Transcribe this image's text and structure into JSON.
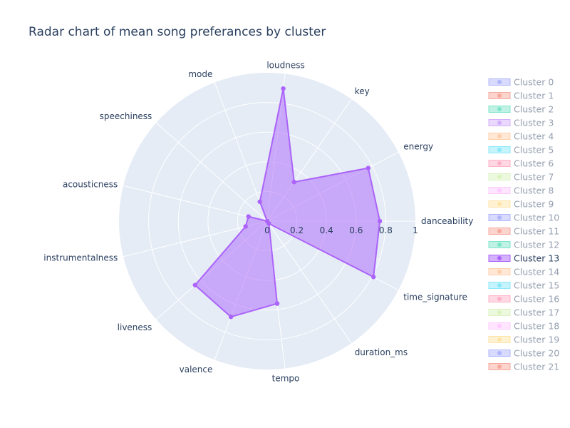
{
  "chart_data": {
    "type": "radar",
    "title": "Radar chart of mean song preferances by cluster",
    "axes": [
      "danceability",
      "energy",
      "key",
      "loudness",
      "mode",
      "speechiness",
      "acousticness",
      "instrumentalness",
      "liveness",
      "valence",
      "tempo",
      "duration_ms",
      "time_signature"
    ],
    "radial_range": [
      0,
      1
    ],
    "radial_ticks": [
      "0",
      "0.2",
      "0.4",
      "0.6",
      "0.8",
      "1"
    ],
    "radial_tick_values": [
      0,
      0.2,
      0.4,
      0.6,
      0.8,
      1
    ],
    "grid": true,
    "legend_position": "right",
    "highlighted_series": "Cluster 13",
    "series": [
      {
        "name": "Cluster 0",
        "color": "#636efa",
        "visible": false
      },
      {
        "name": "Cluster 1",
        "color": "#ef553b",
        "visible": false
      },
      {
        "name": "Cluster 2",
        "color": "#00cc96",
        "visible": false
      },
      {
        "name": "Cluster 3",
        "color": "#ab63fa",
        "visible": false
      },
      {
        "name": "Cluster 4",
        "color": "#ffa15a",
        "visible": false
      },
      {
        "name": "Cluster 5",
        "color": "#19d3f3",
        "visible": false
      },
      {
        "name": "Cluster 6",
        "color": "#ff6692",
        "visible": false
      },
      {
        "name": "Cluster 7",
        "color": "#b6e880",
        "visible": false
      },
      {
        "name": "Cluster 8",
        "color": "#ff97ff",
        "visible": false
      },
      {
        "name": "Cluster 9",
        "color": "#fecb52",
        "visible": false
      },
      {
        "name": "Cluster 10",
        "color": "#636efa",
        "visible": false
      },
      {
        "name": "Cluster 11",
        "color": "#ef553b",
        "visible": false
      },
      {
        "name": "Cluster 12",
        "color": "#00cc96",
        "visible": false
      },
      {
        "name": "Cluster 13",
        "color": "#ab63fa",
        "visible": true,
        "values": [
          0.76,
          0.77,
          0.32,
          0.9,
          0.14,
          0.0,
          0.13,
          0.15,
          0.65,
          0.69,
          0.56,
          0.02,
          0.81
        ]
      },
      {
        "name": "Cluster 14",
        "color": "#ffa15a",
        "visible": false
      },
      {
        "name": "Cluster 15",
        "color": "#19d3f3",
        "visible": false
      },
      {
        "name": "Cluster 16",
        "color": "#ff6692",
        "visible": false
      },
      {
        "name": "Cluster 17",
        "color": "#b6e880",
        "visible": false
      },
      {
        "name": "Cluster 18",
        "color": "#ff97ff",
        "visible": false
      },
      {
        "name": "Cluster 19",
        "color": "#fecb52",
        "visible": false
      },
      {
        "name": "Cluster 20",
        "color": "#636efa",
        "visible": false
      },
      {
        "name": "Cluster 21",
        "color": "#ef553b",
        "visible": false
      }
    ]
  }
}
